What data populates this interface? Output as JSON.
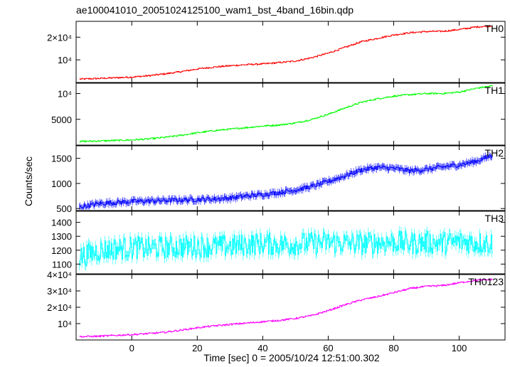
{
  "chart_data": {
    "type": "line",
    "title": "ae100041010_20051024125100_wam1_bst_4band_16bin.qdp",
    "xlabel": "Time [sec] 0 = 2005/10/24 12:51:00.302",
    "ylabel": "Counts/sec",
    "xlim": [
      -17,
      114
    ],
    "x_ticks": [
      0,
      20,
      40,
      60,
      80,
      100
    ],
    "panels": [
      {
        "label": "TH0",
        "color": "#ff0000",
        "ylim": [
          0,
          27000
        ],
        "y_ticks": [
          {
            "value": 10000,
            "label": "10⁴"
          },
          {
            "value": 20000,
            "label": "2×10⁴"
          }
        ],
        "series": {
          "x": [
            -16,
            -10,
            -5,
            0,
            5,
            10,
            15,
            20,
            25,
            30,
            35,
            40,
            45,
            50,
            55,
            60,
            65,
            70,
            75,
            80,
            85,
            90,
            95,
            100,
            105,
            110
          ],
          "values": [
            1500,
            1800,
            2100,
            2400,
            3000,
            3800,
            4800,
            6000,
            6800,
            7400,
            7900,
            8200,
            8800,
            9500,
            11000,
            13000,
            15500,
            18000,
            19500,
            21000,
            22000,
            22500,
            22600,
            23400,
            24500,
            25000
          ]
        }
      },
      {
        "label": "TH1",
        "color": "#00ff00",
        "ylim": [
          0,
          12000
        ],
        "y_ticks": [
          {
            "value": 5000,
            "label": "5000"
          },
          {
            "value": 10000,
            "label": "10⁴"
          }
        ],
        "series": {
          "x": [
            -16,
            -10,
            -5,
            0,
            5,
            10,
            15,
            20,
            25,
            30,
            35,
            40,
            45,
            50,
            55,
            60,
            65,
            70,
            75,
            80,
            85,
            90,
            95,
            100,
            105,
            110
          ],
          "values": [
            700,
            800,
            900,
            1000,
            1200,
            1500,
            1900,
            2400,
            2800,
            3100,
            3400,
            3700,
            3900,
            4300,
            5000,
            6000,
            7200,
            8300,
            9000,
            9500,
            9800,
            10000,
            10000,
            10300,
            11000,
            11500
          ]
        }
      },
      {
        "label": "TH2",
        "color": "#0000ff",
        "ylim": [
          460,
          1750
        ],
        "y_ticks": [
          {
            "value": 500,
            "label": "500"
          },
          {
            "value": 1000,
            "label": "1000"
          },
          {
            "value": 1500,
            "label": "1500"
          }
        ],
        "series": {
          "x": [
            -16,
            -10,
            -5,
            0,
            5,
            10,
            15,
            20,
            25,
            30,
            35,
            40,
            45,
            50,
            55,
            60,
            65,
            70,
            75,
            80,
            85,
            90,
            95,
            100,
            105,
            110
          ],
          "values": [
            530,
            600,
            620,
            640,
            650,
            660,
            670,
            680,
            690,
            710,
            750,
            780,
            820,
            870,
            940,
            1040,
            1150,
            1270,
            1320,
            1300,
            1250,
            1280,
            1330,
            1370,
            1440,
            1560
          ]
        }
      },
      {
        "label": "TH3",
        "color": "#00ffff",
        "ylim": [
          1030,
          1480
        ],
        "y_ticks": [
          {
            "value": 1100,
            "label": "1100"
          },
          {
            "value": 1200,
            "label": "1200"
          },
          {
            "value": 1300,
            "label": "1300"
          },
          {
            "value": 1400,
            "label": "1400"
          }
        ],
        "series": {
          "x": [
            -16,
            -10,
            -5,
            0,
            5,
            10,
            15,
            20,
            25,
            30,
            35,
            40,
            45,
            50,
            55,
            60,
            65,
            70,
            75,
            80,
            85,
            90,
            95,
            100,
            105,
            110
          ],
          "values": [
            1150,
            1200,
            1210,
            1220,
            1215,
            1220,
            1225,
            1230,
            1225,
            1230,
            1240,
            1250,
            1240,
            1245,
            1250,
            1255,
            1250,
            1245,
            1255,
            1260,
            1250,
            1255,
            1250,
            1260,
            1255,
            1250
          ]
        }
      },
      {
        "label": "TH0123",
        "color": "#ff00ff",
        "ylim": [
          0,
          40000
        ],
        "y_ticks": [
          {
            "value": 10000,
            "label": "10⁴"
          },
          {
            "value": 20000,
            "label": "2×10⁴"
          },
          {
            "value": 30000,
            "label": "3×10⁴"
          },
          {
            "value": 40000,
            "label": "4×10⁴"
          }
        ],
        "series": {
          "x": [
            -16,
            -10,
            -5,
            0,
            5,
            10,
            15,
            20,
            25,
            30,
            35,
            40,
            45,
            50,
            55,
            60,
            65,
            70,
            75,
            80,
            85,
            90,
            95,
            100,
            105,
            110
          ],
          "values": [
            2000,
            2300,
            2800,
            3300,
            3900,
            4700,
            6000,
            7500,
            8600,
            9500,
            10300,
            11200,
            12000,
            13200,
            15000,
            18000,
            21500,
            24500,
            26500,
            29000,
            31500,
            32800,
            33300,
            35000,
            36500,
            37000
          ]
        }
      }
    ]
  }
}
